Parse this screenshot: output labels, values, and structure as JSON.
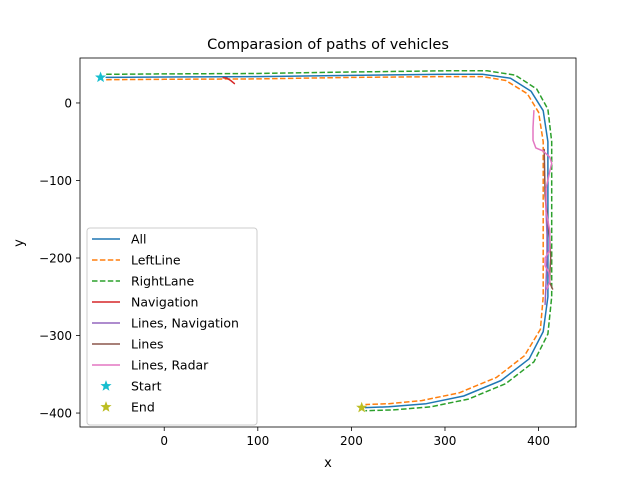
{
  "chart_data": {
    "type": "line",
    "title": "Comparasion of paths of vehicles",
    "xlabel": "x",
    "ylabel": "y",
    "xlim": [
      -90,
      440
    ],
    "ylim": [
      -418,
      58
    ],
    "xticks": [
      0,
      100,
      200,
      300,
      400
    ],
    "yticks": [
      0,
      -100,
      -200,
      -300,
      -400
    ],
    "xtick_labels": [
      "0",
      "100",
      "200",
      "300",
      "400"
    ],
    "ytick_labels": [
      "0",
      "−100",
      "−200",
      "−300",
      "−400"
    ],
    "grid": false,
    "legend_position": "lower-left",
    "series": [
      {
        "name": "All",
        "color": "#1f77b4",
        "style": "solid",
        "x": [
          -62,
          0,
          100,
          200,
          300,
          340,
          370,
          392,
          405,
          410,
          410,
          410,
          405,
          390,
          360,
          320,
          280,
          240,
          215
        ],
        "y": [
          33,
          33.5,
          34,
          35.5,
          37,
          37,
          32,
          15,
          -10,
          -50,
          -150,
          -250,
          -295,
          -330,
          -358,
          -378,
          -388,
          -392,
          -393
        ]
      },
      {
        "name": "LeftLine",
        "color": "#ff7f0e",
        "style": "dashed",
        "x": [
          -62,
          0,
          100,
          200,
          300,
          340,
          365,
          388,
          400,
          405,
          405,
          405,
          402,
          385,
          355,
          315,
          275,
          240,
          215
        ],
        "y": [
          30,
          30.5,
          31,
          33,
          34,
          34,
          29,
          12,
          -12,
          -50,
          -150,
          -250,
          -292,
          -326,
          -354,
          -374,
          -384,
          -388,
          -389
        ]
      },
      {
        "name": "RightLane",
        "color": "#2ca02c",
        "style": "dashed",
        "x": [
          -62,
          0,
          100,
          200,
          300,
          345,
          375,
          398,
          410,
          414,
          414,
          414,
          410,
          395,
          365,
          325,
          285,
          245,
          215
        ],
        "y": [
          37,
          37.5,
          38,
          40,
          41.5,
          41.5,
          36,
          18,
          -8,
          -50,
          -150,
          -250,
          -298,
          -334,
          -362,
          -382,
          -392,
          -396,
          -397
        ]
      },
      {
        "name": "Navigation",
        "color": "#d62728",
        "style": "solid",
        "x": [
          63,
          67,
          71,
          75
        ],
        "y": [
          32.5,
          32,
          29,
          25
        ]
      },
      {
        "name": "Lines, Navigation",
        "color": "#9467bd",
        "style": "solid",
        "x": [
          407,
          408,
          409,
          409,
          408,
          407
        ],
        "y": [
          -110,
          -140,
          -170,
          -200,
          -230,
          -260
        ]
      },
      {
        "name": "Lines",
        "color": "#8c564b",
        "style": "solid",
        "x": [
          406,
          407,
          412,
          413,
          412,
          412,
          415
        ],
        "y": [
          -60,
          -120,
          -175,
          -200,
          -220,
          -232,
          -240
        ]
      },
      {
        "name": "Lines, Radar",
        "color": "#e377c2",
        "style": "solid",
        "x": [
          395,
          394,
          394,
          397,
          405,
          412,
          414,
          412,
          408,
          408,
          412,
          412,
          407,
          407,
          411,
          412,
          409
        ],
        "y": [
          -10,
          -32,
          -48,
          -58,
          -62,
          -70,
          -78,
          -88,
          -110,
          -140,
          -165,
          -190,
          -200,
          -210,
          -218,
          -230,
          -240
        ]
      },
      {
        "name": "Start",
        "color": "#17becf",
        "marker": "star",
        "x": [
          -68
        ],
        "y": [
          33
        ]
      },
      {
        "name": "End",
        "color": "#bcbd22",
        "marker": "star",
        "x": [
          211
        ],
        "y": [
          -393
        ]
      }
    ]
  }
}
